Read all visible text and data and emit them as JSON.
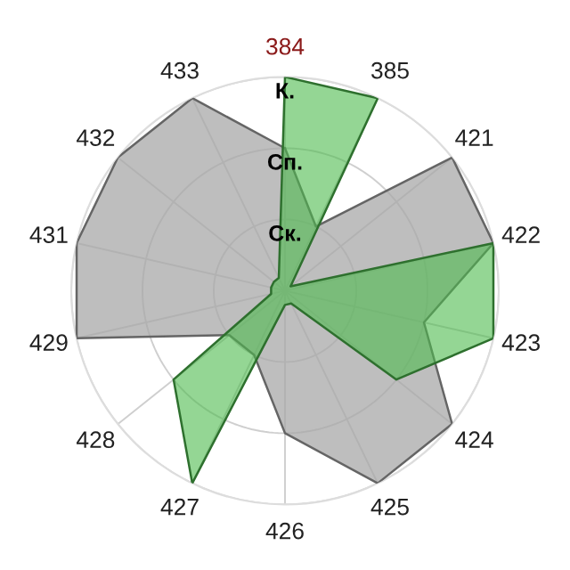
{
  "chart_data": {
    "type": "radar",
    "categories": [
      "384",
      "385",
      "421",
      "422",
      "423",
      "424",
      "425",
      "426",
      "427",
      "428",
      "429",
      "431",
      "432",
      "433"
    ],
    "series": [
      {
        "color": "#a8a8a8",
        "values": [
          2,
          1,
          3,
          3,
          2,
          3,
          3,
          2,
          1,
          1,
          3,
          3,
          3,
          3
        ]
      },
      {
        "color": "#4cbb4c",
        "values": [
          3,
          3,
          0.1,
          3,
          3,
          2,
          0.2,
          0.2,
          3,
          2,
          0.2,
          0.2,
          0.2,
          0.2
        ]
      }
    ],
    "ylim": [
      0,
      3
    ],
    "yticks": [
      {
        "value": 1,
        "label": "Ск."
      },
      {
        "value": 2,
        "label": "Сп."
      },
      {
        "value": 3,
        "label": "К."
      }
    ],
    "grid": true
  }
}
